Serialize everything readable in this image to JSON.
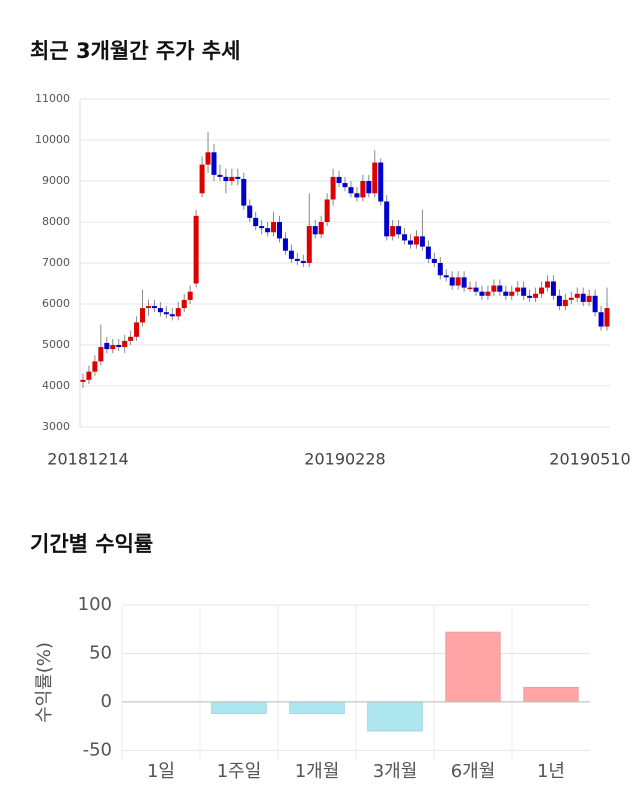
{
  "chart_data": [
    {
      "type": "candlestick",
      "title": "최근 3개월간 주가 추세",
      "categories": [
        "20181214",
        null,
        null,
        null,
        null,
        null,
        null,
        null,
        null,
        null,
        null,
        null,
        null,
        null,
        null,
        null,
        null,
        null,
        null,
        null,
        null,
        null,
        null,
        null,
        null,
        null,
        null,
        null,
        null,
        null,
        null,
        null,
        null,
        null,
        null,
        null,
        null,
        null,
        null,
        null,
        null,
        null,
        null,
        null,
        "20190228",
        null,
        null,
        null,
        null,
        null,
        null,
        null,
        null,
        null,
        null,
        null,
        null,
        null,
        null,
        null,
        null,
        null,
        null,
        null,
        null,
        null,
        null,
        null,
        null,
        null,
        null,
        null,
        null,
        null,
        null,
        null,
        null,
        null,
        null,
        null,
        null,
        null,
        null,
        null,
        null,
        null,
        null,
        null,
        "20190510"
      ],
      "open": [
        4100,
        4150,
        4350,
        4600,
        5050,
        4900,
        5000,
        4950,
        5100,
        5200,
        5550,
        5900,
        5950,
        5900,
        5800,
        5750,
        5700,
        5900,
        6100,
        6500,
        8700,
        9400,
        9700,
        9150,
        9100,
        9000,
        9100,
        9050,
        8400,
        8100,
        7900,
        7850,
        7750,
        8000,
        7600,
        7300,
        7100,
        7050,
        7000,
        7900,
        7700,
        8000,
        8550,
        9100,
        8950,
        8850,
        8700,
        8600,
        9000,
        8700,
        9450,
        8500,
        7650,
        7900,
        7700,
        7550,
        7450,
        7650,
        7400,
        7100,
        7000,
        6700,
        6650,
        6450,
        6650,
        6400,
        6400,
        6300,
        6200,
        6300,
        6450,
        6300,
        6200,
        6300,
        6400,
        6200,
        6150,
        6250,
        6400,
        6550,
        6200,
        5950,
        6100,
        6150,
        6250,
        6050,
        6200,
        5800,
        5450
      ],
      "high": [
        4300,
        4500,
        4750,
        5500,
        5200,
        5150,
        5150,
        5250,
        5350,
        5700,
        6350,
        6100,
        6100,
        6050,
        5950,
        5900,
        6050,
        6250,
        6450,
        8300,
        9600,
        10200,
        9900,
        9400,
        9300,
        9300,
        9300,
        9200,
        8550,
        8250,
        8050,
        8000,
        8250,
        8150,
        7750,
        7450,
        7250,
        7200,
        8700,
        8050,
        8150,
        8700,
        9300,
        9250,
        9100,
        9000,
        8850,
        9150,
        9150,
        9750,
        9550,
        8650,
        8050,
        8050,
        7850,
        7700,
        7800,
        8300,
        7550,
        7250,
        7150,
        6850,
        6800,
        6800,
        6800,
        6550,
        6550,
        6450,
        6450,
        6600,
        6600,
        6450,
        6450,
        6550,
        6550,
        6350,
        6400,
        6550,
        6700,
        6700,
        6350,
        6250,
        6300,
        6400,
        6400,
        6350,
        6350,
        5950,
        6400
      ],
      "low": [
        3950,
        4050,
        4250,
        4500,
        4800,
        4800,
        4850,
        4800,
        5000,
        5100,
        5450,
        5700,
        5800,
        5700,
        5650,
        5600,
        5600,
        5800,
        6000,
        6400,
        8600,
        9200,
        9000,
        9000,
        8700,
        8900,
        8900,
        8300,
        8000,
        7800,
        7700,
        7650,
        7650,
        7500,
        7200,
        7000,
        6950,
        6900,
        6900,
        7600,
        7600,
        7900,
        8400,
        8850,
        8750,
        8600,
        8500,
        8500,
        8600,
        8600,
        8400,
        7550,
        7550,
        7600,
        7450,
        7350,
        7350,
        7300,
        7000,
        6900,
        6600,
        6550,
        6350,
        6350,
        6300,
        6300,
        6200,
        6100,
        6100,
        6200,
        6200,
        6100,
        6100,
        6200,
        6100,
        6050,
        6050,
        6150,
        6300,
        6100,
        5850,
        5850,
        6000,
        6050,
        5950,
        5950,
        5700,
        5350,
        5350
      ],
      "close": [
        4150,
        4350,
        4600,
        4950,
        4900,
        5000,
        4950,
        5100,
        5200,
        5550,
        5900,
        5950,
        5900,
        5800,
        5750,
        5700,
        5900,
        6100,
        6300,
        8150,
        9400,
        9700,
        9150,
        9100,
        9000,
        9100,
        9050,
        8400,
        8100,
        7900,
        7850,
        7750,
        8000,
        7600,
        7300,
        7100,
        7050,
        7000,
        7900,
        7700,
        8000,
        8550,
        9100,
        8950,
        8850,
        8700,
        8600,
        9000,
        8700,
        9450,
        8500,
        7650,
        7900,
        7700,
        7550,
        7450,
        7650,
        7400,
        7100,
        7000,
        6700,
        6650,
        6450,
        6650,
        6400,
        6400,
        6300,
        6200,
        6300,
        6450,
        6300,
        6200,
        6300,
        6400,
        6200,
        6150,
        6250,
        6400,
        6550,
        6200,
        5950,
        6100,
        6150,
        6250,
        6050,
        6200,
        5800,
        5450,
        5900
      ],
      "up_color": "#dd0000",
      "down_color": "#0000cc",
      "ylim": [
        3000,
        11000
      ],
      "yticks": [
        3000,
        4000,
        5000,
        6000,
        7000,
        8000,
        9000,
        10000,
        11000
      ],
      "grid": true
    },
    {
      "type": "bar",
      "title": "기간별 수익률",
      "ylabel": "수익률(%)",
      "categories": [
        "1일",
        "1주일",
        "1개월",
        "3개월",
        "6개월",
        "1년"
      ],
      "values": [
        0,
        -12,
        -12,
        -30,
        72,
        15
      ],
      "up_color": "#ffa5a5",
      "down_color": "#aee6f0",
      "ylim": [
        -60,
        100
      ],
      "yticks": [
        -50,
        0,
        50,
        100
      ],
      "grid": true
    }
  ]
}
